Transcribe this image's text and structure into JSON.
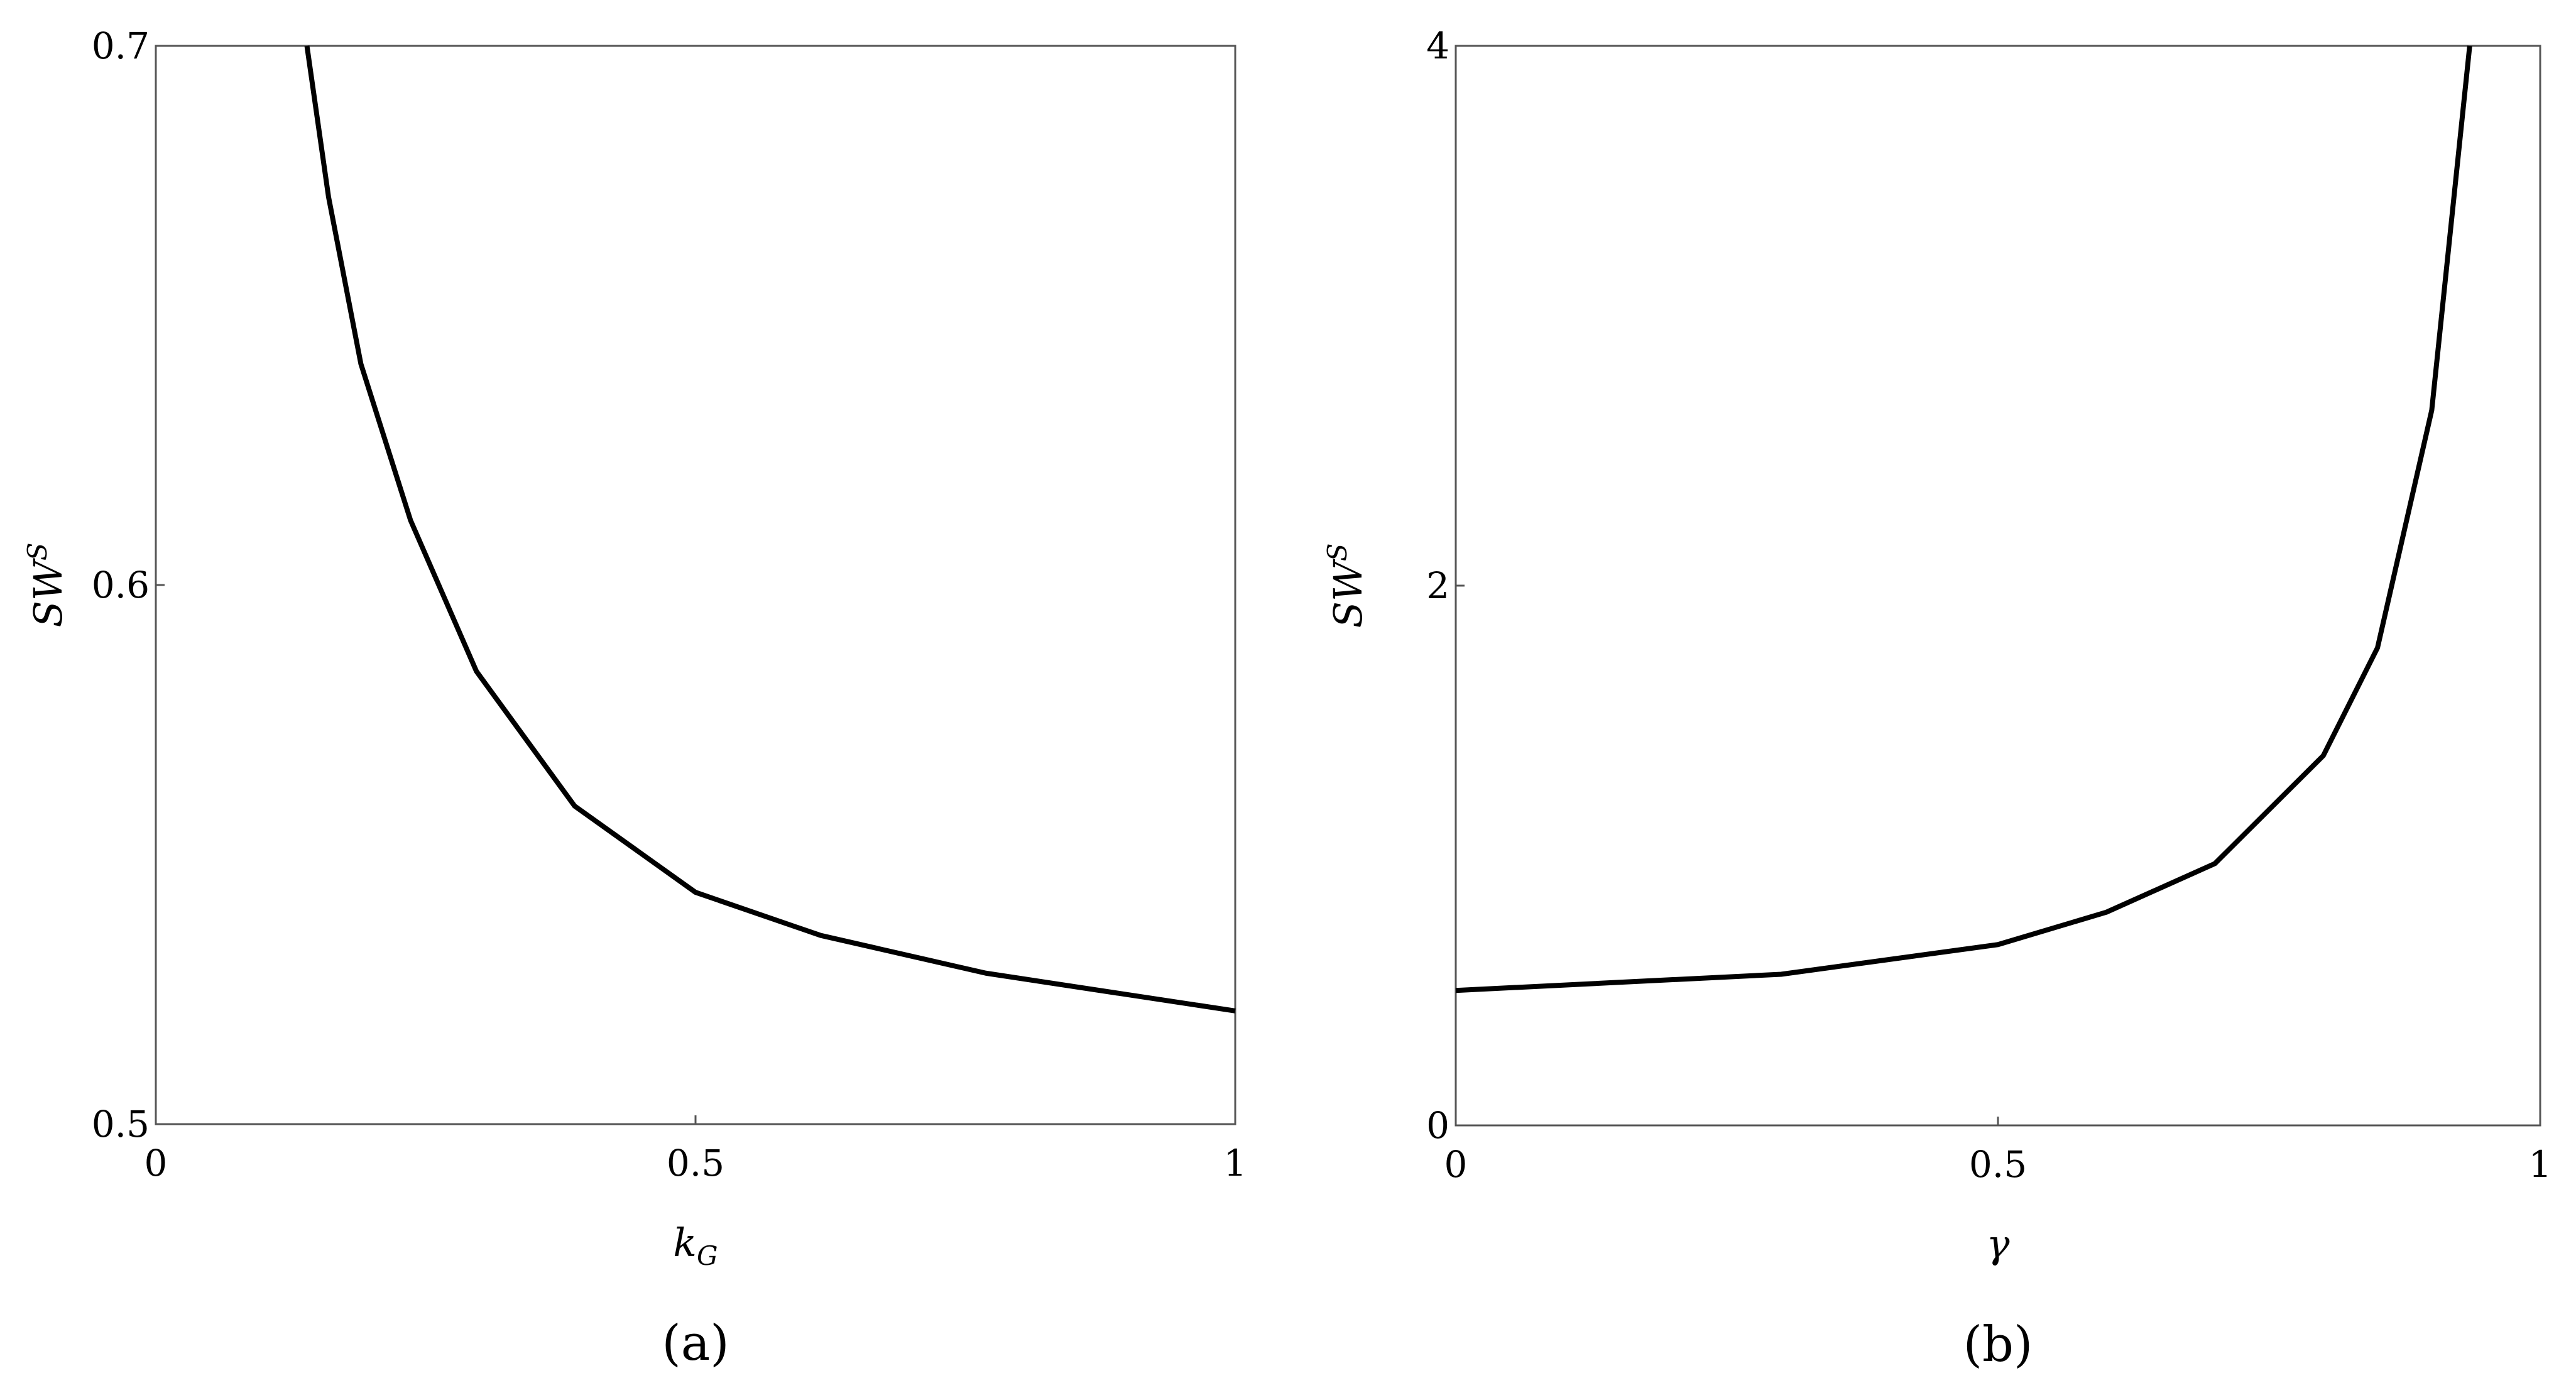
{
  "chart_data": [
    {
      "type": "line",
      "caption": "(a)",
      "xlabel": "k",
      "xlabel_subscript": "G",
      "ylabel": "SW",
      "ylabel_superscript": "S",
      "x": [
        0.14,
        0.16,
        0.19,
        0.236,
        0.297,
        0.388,
        0.5,
        0.616,
        0.769,
        1
      ],
      "series": [
        {
          "color": "#000000",
          "values": [
            0.7,
            0.672,
            0.641,
            0.612,
            0.584,
            0.559,
            0.543,
            0.535,
            0.528,
            0.521
          ]
        }
      ],
      "xlim": [
        0,
        1
      ],
      "ylim": [
        0.5,
        0.7
      ],
      "xticks": [
        0,
        0.5,
        1
      ],
      "yticks": [
        0.5,
        0.6,
        0.7
      ]
    },
    {
      "type": "line",
      "caption": "(b)",
      "xlabel": "γ",
      "ylabel": "SW",
      "ylabel_superscript": "S",
      "x": [
        0,
        0.3,
        0.5,
        0.6,
        0.7,
        0.8,
        0.85,
        0.9,
        0.935
      ],
      "series": [
        {
          "color": "#000000",
          "values": [
            0.5,
            0.56,
            0.67,
            0.79,
            0.97,
            1.37,
            1.77,
            2.65,
            4
          ]
        }
      ],
      "xlim": [
        0,
        1
      ],
      "ylim": [
        0,
        4
      ],
      "xticks": [
        0,
        0.5,
        1
      ],
      "yticks": [
        0,
        2,
        4
      ]
    }
  ]
}
